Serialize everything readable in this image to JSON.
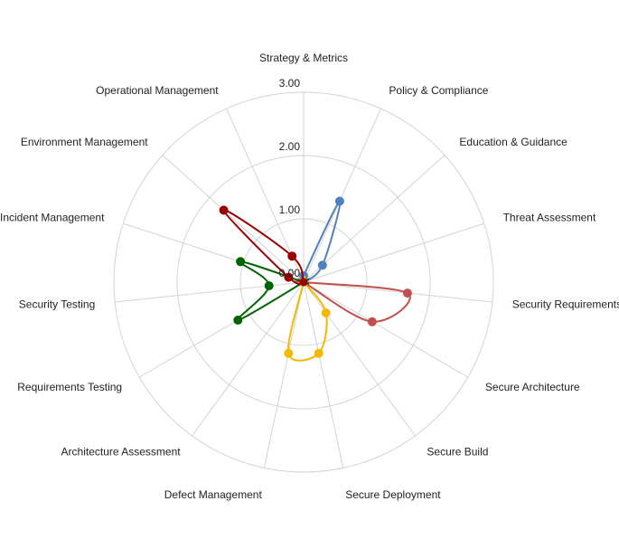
{
  "chart_data": {
    "type": "radar",
    "axes": [
      "Strategy & Metrics",
      "Policy & Compliance",
      "Education & Guidance",
      "Threat Assessment",
      "Security Requirements",
      "Secure Architecture",
      "Secure Build",
      "Secure Deployment",
      "Defect Management",
      "Architecture Assessment",
      "Requirements Testing",
      "Security Testing",
      "Incident Management",
      "Environment Management",
      "Operational Management"
    ],
    "ticks": [
      "0.00",
      "1.00",
      "2.00",
      "3.00"
    ],
    "range": [
      0,
      3
    ],
    "grid": true,
    "series": [
      {
        "color": "#4f81bd",
        "values": [
          0.1,
          1.4,
          0.4,
          0,
          0,
          0,
          0,
          0,
          0,
          0,
          0,
          0,
          0,
          0,
          0
        ]
      },
      {
        "color": "#c0504d",
        "values": [
          0,
          0,
          0,
          0,
          1.65,
          1.25,
          0,
          0,
          0,
          0,
          0,
          0,
          0,
          0,
          0
        ]
      },
      {
        "color": "#f5b800",
        "values": [
          0,
          0,
          0,
          0,
          0,
          0,
          0.6,
          1.15,
          1.15,
          0,
          0,
          0,
          0,
          0,
          0
        ]
      },
      {
        "color": "#006400",
        "values": [
          0,
          0,
          0,
          0,
          0,
          0,
          0,
          0,
          0,
          0,
          1.2,
          0.55,
          1.05,
          0,
          0
        ]
      },
      {
        "color": "#990000",
        "values": [
          0,
          0,
          0,
          0,
          0,
          0,
          0,
          0,
          0,
          0,
          0,
          0,
          0.25,
          1.7,
          0.45
        ]
      }
    ]
  }
}
